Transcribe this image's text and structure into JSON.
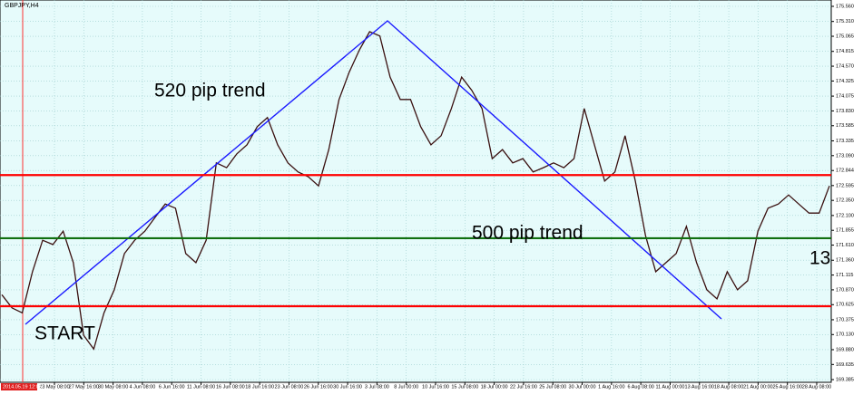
{
  "chart_data": {
    "type": "line",
    "title": "GBPJPY,H4",
    "color": "#3a1010",
    "grid": true,
    "ylim": [
      169.34,
      175.665
    ],
    "yticks": [
      {
        "value": 175.56,
        "label": "175.560"
      },
      {
        "value": 175.31,
        "label": "175.310"
      },
      175.065,
      174.815,
      {
        "value": 174.57,
        "label": "174.570"
      },
      174.325,
      174.075,
      {
        "value": 173.83,
        "label": "173.830"
      },
      173.585,
      173.335,
      {
        "value": 173.09,
        "label": "173.090"
      },
      172.844,
      172.595,
      {
        "value": 172.35,
        "label": "172.350"
      },
      {
        "value": 172.1,
        "label": "172.100"
      },
      171.855,
      {
        "value": 171.61,
        "label": "171.610"
      },
      {
        "value": 171.36,
        "label": "171.360"
      },
      171.115,
      {
        "value": 170.87,
        "label": "170.870"
      },
      170.625,
      170.375,
      {
        "value": 170.13,
        "label": "170.130"
      },
      {
        "value": 169.88,
        "label": "169.880"
      },
      169.635,
      169.385
    ],
    "cursor_label": "2014.05.19 12:00",
    "x_labels": [
      "23 May 08:00",
      "27 May 16:00",
      "30 May 08:00",
      "4 Jun 08:00",
      "6 Jun 16:00",
      "11 Jun 08:00",
      "16 Jun 08:00",
      "18 Jun 16:00",
      "23 Jun 08:00",
      "26 Jun 16:00",
      "30 Jun 16:00",
      "3 Jul 08:00",
      "8 Jul 00:00",
      "10 Jul 16:00",
      "15 Jul 08:00",
      "18 Jul 00:00",
      "22 Jul 16:00",
      "25 Jul 08:00",
      "30 Jul 00:00",
      "1 Aug 16:00",
      "6 Aug 08:00",
      "11 Aug 00:00",
      "13 Aug 16:00",
      "18 Aug 08:00",
      "21 Aug 00:00",
      "25 Aug 16:00",
      "28 Aug 08:00"
    ],
    "values": [
      170.79,
      170.57,
      170.49,
      171.17,
      171.69,
      171.62,
      171.84,
      171.32,
      170.12,
      169.89,
      170.49,
      170.87,
      171.47,
      171.69,
      171.84,
      172.07,
      172.29,
      172.22,
      171.47,
      171.32,
      171.69,
      172.97,
      172.89,
      173.12,
      173.27,
      173.57,
      173.72,
      173.27,
      172.97,
      172.82,
      172.74,
      172.59,
      173.19,
      174.02,
      174.47,
      174.84,
      175.14,
      175.07,
      174.39,
      174.02,
      174.02,
      173.57,
      173.27,
      173.42,
      173.87,
      174.39,
      174.17,
      173.87,
      173.04,
      173.19,
      172.97,
      173.04,
      172.82,
      172.89,
      172.97,
      172.89,
      173.04,
      173.87,
      173.27,
      172.67,
      172.82,
      173.42,
      172.67,
      171.77,
      171.17,
      171.32,
      171.47,
      171.92,
      171.32,
      170.87,
      170.72,
      171.17,
      170.87,
      171.02,
      171.84,
      172.22,
      172.29,
      172.44,
      172.29,
      172.14,
      172.14,
      172.59
    ],
    "levels": [
      {
        "price": 172.769,
        "color": "#ff0000"
      },
      {
        "price": 171.724,
        "color": "#107010"
      },
      {
        "price": 170.599,
        "color": "#ff0000"
      }
    ],
    "last_price": 172.597,
    "annotations": [
      "520 pip trend",
      "500 pip trend",
      "START",
      "13"
    ]
  }
}
